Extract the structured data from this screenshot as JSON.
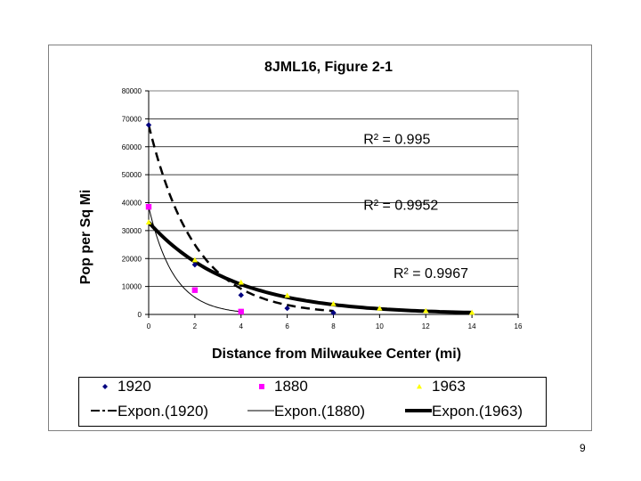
{
  "slide": {
    "page_number": "9"
  },
  "chart_data": {
    "type": "scatter",
    "title": "8JML16, Figure 2-1",
    "xlabel": "Distance from Milwaukee Center (mi)",
    "ylabel": "Pop per Sq Mi",
    "xlim": [
      0,
      16
    ],
    "ylim": [
      0,
      80000
    ],
    "x_ticks": [
      0,
      2,
      4,
      6,
      8,
      10,
      12,
      14,
      16
    ],
    "y_ticks": [
      0,
      10000,
      20000,
      30000,
      40000,
      50000,
      60000,
      70000,
      80000
    ],
    "grid": "horizontal",
    "legend_position": "bottom",
    "series": [
      {
        "name": "1920",
        "marker": "diamond",
        "color": "#000080",
        "x": [
          0,
          2,
          4,
          6,
          8
        ],
        "y": [
          67800,
          17800,
          6900,
          2200,
          600
        ]
      },
      {
        "name": "1880",
        "marker": "square",
        "color": "#ff00ff",
        "x": [
          0,
          2,
          4
        ],
        "y": [
          38500,
          8700,
          1000
        ]
      },
      {
        "name": "1963",
        "marker": "triangle",
        "color": "#ffff00",
        "x": [
          0,
          2,
          4,
          6,
          8,
          10,
          12,
          14
        ],
        "y": [
          33000,
          19500,
          11500,
          6800,
          3800,
          2200,
          1300,
          700
        ]
      }
    ],
    "trendlines": [
      {
        "name": "Expon.(1920)",
        "style": "dashed",
        "width": 2.5,
        "a": 67800,
        "b": 0.5,
        "x_range": [
          0,
          8
        ]
      },
      {
        "name": "Expon.(1880)",
        "style": "solid",
        "width": 1,
        "a": 38500,
        "b": 0.92,
        "x_range": [
          0,
          4
        ]
      },
      {
        "name": "Expon.(1963)",
        "style": "solid",
        "width": 4,
        "a": 33000,
        "b": 0.28,
        "x_range": [
          0,
          14
        ]
      }
    ],
    "annotations": [
      {
        "text": "R² = 0.995",
        "x": 9.3,
        "y": 61000
      },
      {
        "text": "R² = 0.9952",
        "x": 9.3,
        "y": 37500
      },
      {
        "text": "R² = 0.9967",
        "x": 10.6,
        "y": 13000
      }
    ],
    "legend": [
      {
        "label": "1920",
        "symbol": "diamond",
        "color": "#000080"
      },
      {
        "label": "1880",
        "symbol": "square",
        "color": "#ff00ff"
      },
      {
        "label": "1963",
        "symbol": "triangle",
        "color": "#ffff00"
      },
      {
        "label": "Expon.(1920)",
        "symbol": "dash-line"
      },
      {
        "label": "Expon.(1880)",
        "symbol": "thin-line"
      },
      {
        "label": "Expon.(1963)",
        "symbol": "thick-line"
      }
    ]
  }
}
